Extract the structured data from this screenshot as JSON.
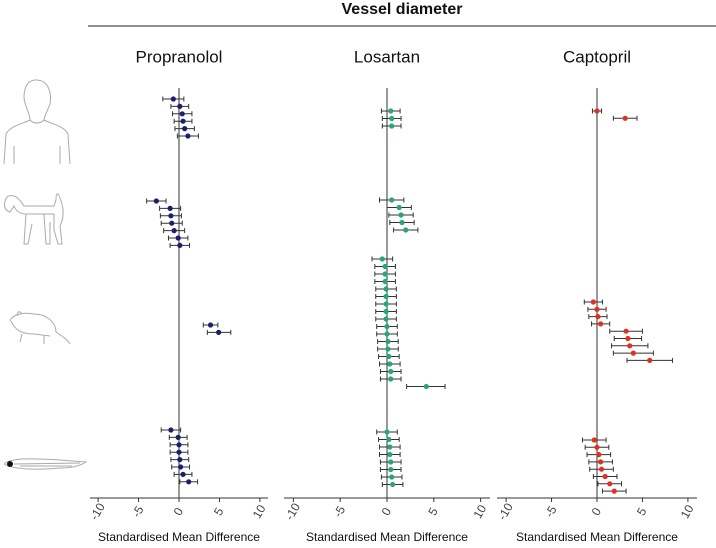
{
  "title": "Vessel diameter",
  "chart_data": [
    {
      "type": "forest",
      "title": "Propranolol",
      "xlabel": "Standardised Mean Difference",
      "color": "#1b1f6e",
      "xlim": [
        -11,
        11
      ],
      "xticks": [
        -10,
        -5,
        0,
        5,
        10
      ],
      "series": [
        {
          "values": [
            -0.7,
            0.1,
            0.4,
            0.5,
            0.7,
            1.1
          ],
          "lower": [
            -2.0,
            -1.0,
            -0.8,
            -0.6,
            -0.5,
            -0.2
          ],
          "upper": [
            0.6,
            1.2,
            1.6,
            1.6,
            1.9,
            2.4
          ]
        },
        {
          "values": [
            -2.8,
            -1.1,
            -1.0,
            -0.9,
            -0.6,
            -0.1,
            0.1
          ],
          "lower": [
            -4.0,
            -2.4,
            -2.3,
            -2.2,
            -1.9,
            -1.3,
            -1.1
          ],
          "upper": [
            -1.6,
            0.2,
            0.3,
            0.4,
            0.7,
            1.1,
            1.3
          ]
        },
        {
          "values": [
            3.9,
            4.9
          ],
          "lower": [
            3.0,
            3.5
          ],
          "upper": [
            4.8,
            6.4
          ]
        },
        {
          "values": [
            -1.0,
            -0.1,
            0.0,
            0.0,
            0.1,
            0.2,
            0.5,
            1.2
          ],
          "lower": [
            -2.2,
            -1.2,
            -1.1,
            -1.1,
            -1.0,
            -0.9,
            -0.6,
            0.1
          ],
          "upper": [
            0.2,
            1.0,
            1.1,
            1.1,
            1.2,
            1.3,
            1.6,
            2.3
          ]
        }
      ]
    },
    {
      "type": "forest",
      "title": "Losartan",
      "xlabel": "Standardised Mean Difference",
      "color": "#2aa57a",
      "xlim": [
        -11,
        11
      ],
      "xticks": [
        -10,
        -5,
        0,
        5,
        10
      ],
      "series": [
        {
          "values": [
            0.4,
            0.5,
            0.5
          ],
          "lower": [
            -0.6,
            -0.5,
            -0.5
          ],
          "upper": [
            1.4,
            1.5,
            1.5
          ]
        },
        {
          "values": [
            0.5,
            1.3,
            1.5,
            1.6,
            2.0
          ],
          "lower": [
            -0.8,
            0.0,
            0.2,
            0.3,
            0.7
          ],
          "upper": [
            1.8,
            2.6,
            2.8,
            2.9,
            3.3
          ]
        },
        {
          "values": [
            -0.5,
            -0.2,
            -0.2,
            -0.2,
            -0.1,
            -0.1,
            -0.1,
            -0.1,
            -0.1,
            0.0,
            0.0,
            0.1,
            0.1,
            0.2,
            0.3,
            0.4,
            0.4,
            4.2
          ],
          "lower": [
            -1.6,
            -1.3,
            -1.3,
            -1.3,
            -1.2,
            -1.2,
            -1.2,
            -1.2,
            -1.2,
            -1.1,
            -1.1,
            -1.0,
            -1.0,
            -0.9,
            -0.8,
            -0.7,
            -0.7,
            2.1
          ],
          "upper": [
            0.6,
            0.9,
            0.9,
            0.9,
            1.0,
            1.0,
            1.0,
            1.0,
            1.0,
            1.1,
            1.1,
            1.2,
            1.2,
            1.3,
            1.4,
            1.5,
            1.5,
            6.2
          ]
        },
        {
          "values": [
            0.0,
            0.2,
            0.3,
            0.3,
            0.4,
            0.4,
            0.5,
            0.6
          ],
          "lower": [
            -1.1,
            -0.9,
            -0.8,
            -0.8,
            -0.7,
            -0.7,
            -0.6,
            -0.5
          ],
          "upper": [
            1.1,
            1.3,
            1.4,
            1.4,
            1.5,
            1.5,
            1.6,
            1.7
          ]
        }
      ]
    },
    {
      "type": "forest",
      "title": "Captopril",
      "xlabel": "Standardised Mean Difference",
      "color": "#e0301e",
      "xlim": [
        -11,
        11
      ],
      "xticks": [
        -10,
        -5,
        0,
        5,
        10
      ],
      "series": [
        {
          "values": [
            0.0,
            3.1
          ],
          "lower": [
            -0.5,
            1.8
          ],
          "upper": [
            0.5,
            4.4
          ]
        },
        {
          "values": [],
          "lower": [],
          "upper": []
        },
        {
          "values": [
            -0.4,
            0.0,
            0.1,
            0.4,
            3.2,
            3.4,
            3.6,
            4.0,
            5.8
          ],
          "lower": [
            -1.4,
            -1.0,
            -0.9,
            -0.6,
            1.4,
            1.9,
            1.6,
            1.8,
            3.3
          ],
          "upper": [
            0.6,
            1.0,
            1.1,
            1.4,
            5.0,
            4.9,
            5.6,
            6.2,
            8.3
          ]
        },
        {
          "values": [
            -0.3,
            0.0,
            0.2,
            0.4,
            0.5,
            0.9,
            1.4,
            1.9
          ],
          "lower": [
            -1.6,
            -1.3,
            -1.1,
            -0.9,
            -0.8,
            -0.4,
            0.1,
            0.6
          ],
          "upper": [
            1.0,
            1.3,
            1.5,
            1.7,
            1.8,
            2.2,
            2.7,
            3.2
          ]
        }
      ]
    }
  ]
}
